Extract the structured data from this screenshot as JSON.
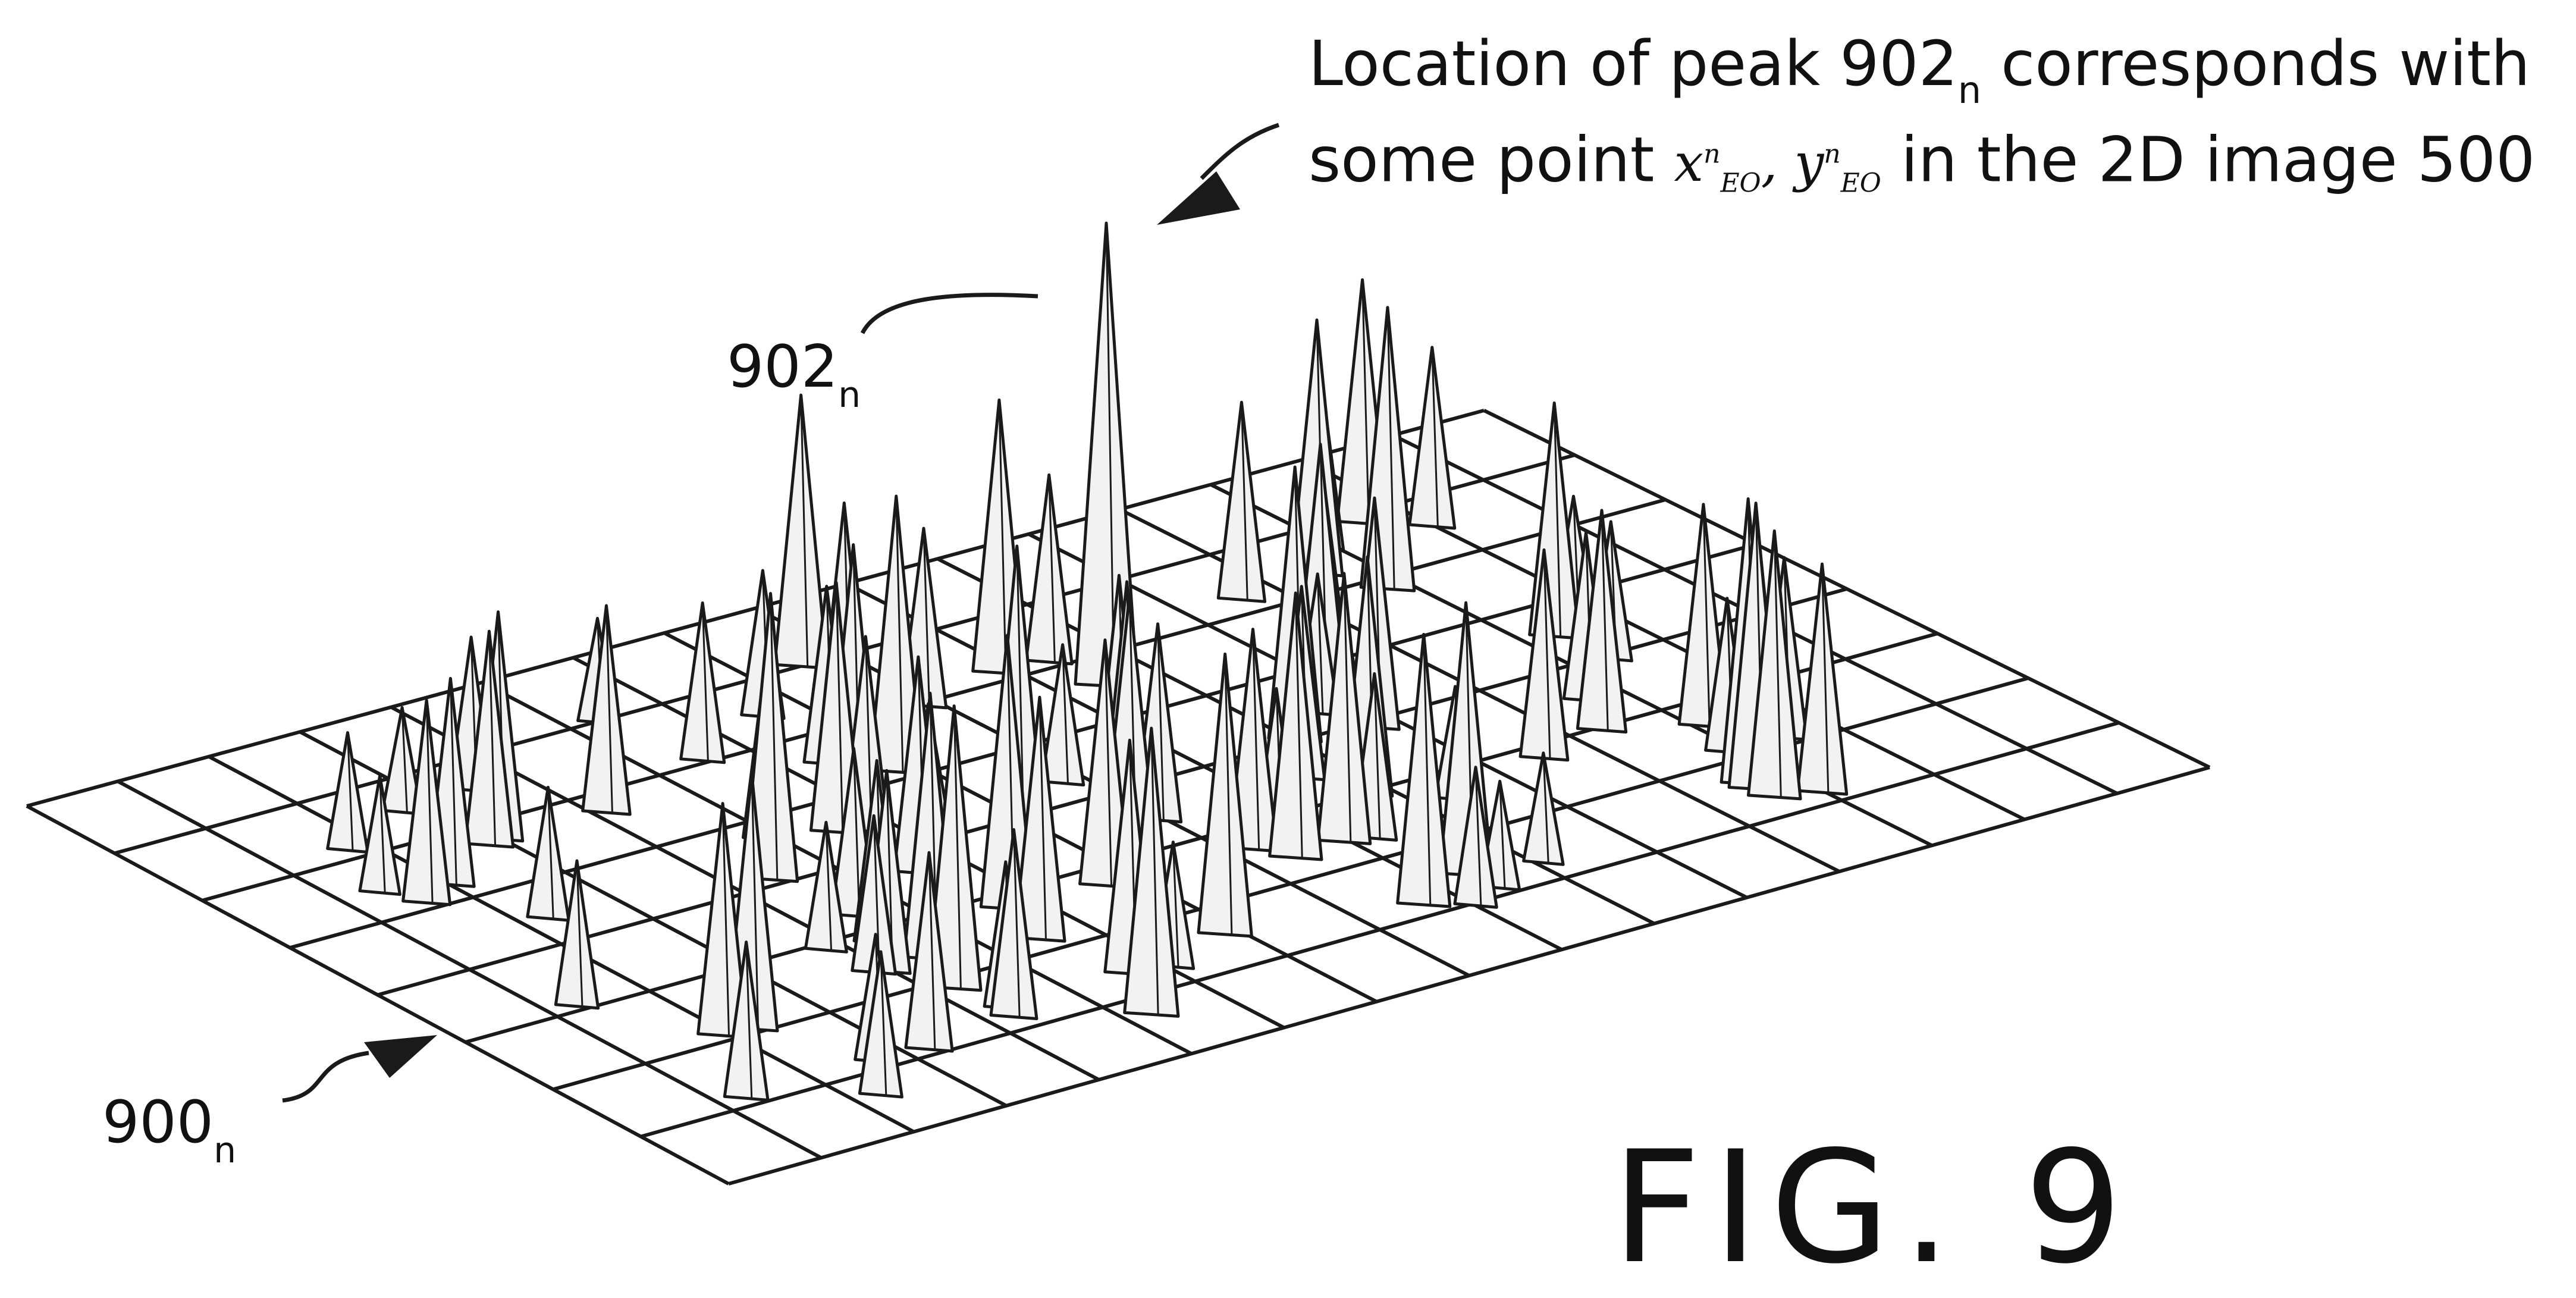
{
  "callout": {
    "line1_pre": "Location of peak 902",
    "line1_sub": "n",
    "line1_post": " corresponds with",
    "line2_pre": "some point ",
    "math_x": "x",
    "math_y": "y",
    "math_sup": "n",
    "math_sub": "EO",
    "line2_post": " in the 2D image 500"
  },
  "labels": {
    "peak": "902",
    "peak_sub": "n",
    "surface": "900",
    "surface_sub": "n"
  },
  "figure": {
    "title": "FIG. 9"
  },
  "colors": {
    "line": "#1a1a1a",
    "spike_fill": "#f2f2f2",
    "background": "#ffffff"
  }
}
